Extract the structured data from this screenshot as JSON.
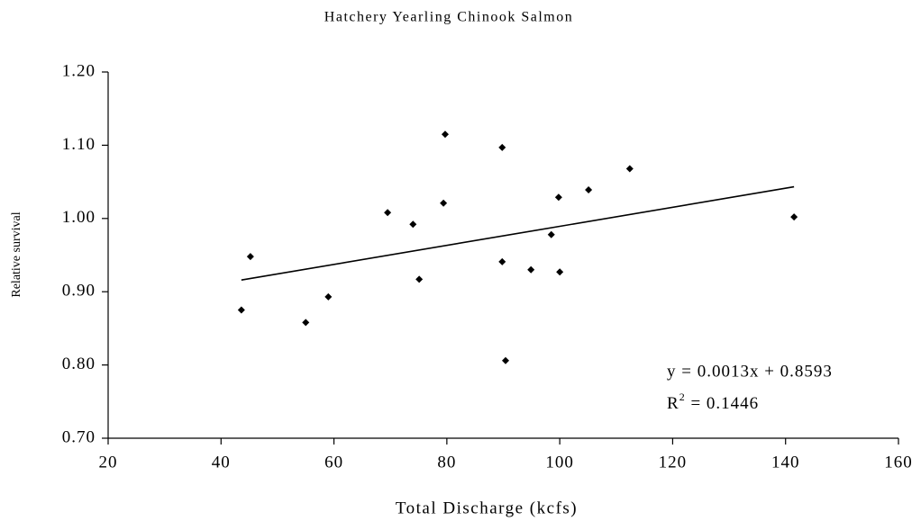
{
  "chart_data": {
    "type": "scatter",
    "title": "Hatchery Yearling Chinook Salmon",
    "x_label": "Total Discharge (kcfs)",
    "y_label": "Relative survival",
    "x": [
      43.6,
      45.2,
      55.0,
      59.0,
      69.5,
      74.0,
      75.1,
      79.4,
      79.7,
      89.8,
      89.8,
      90.4,
      94.9,
      98.5,
      99.8,
      100.0,
      105.1,
      112.4,
      141.5
    ],
    "values": [
      0.875,
      0.948,
      0.858,
      0.893,
      1.008,
      0.992,
      0.917,
      1.021,
      1.115,
      1.097,
      0.941,
      0.806,
      0.93,
      0.978,
      1.029,
      0.927,
      1.039,
      1.068,
      1.002
    ],
    "color": "#000000",
    "xlim": [
      20,
      160
    ],
    "xticks": [
      20,
      40,
      60,
      80,
      100,
      120,
      140,
      160
    ],
    "ylim": [
      0.7,
      1.2
    ],
    "yticks": [
      {
        "value": 0.7,
        "label": "0.70"
      },
      {
        "value": 0.8,
        "label": "0.80"
      },
      {
        "value": 0.9,
        "label": "0.90"
      },
      {
        "value": 1.0,
        "label": "1.00"
      },
      {
        "value": 1.1,
        "label": "1.10"
      },
      {
        "value": 1.2,
        "label": "1.20"
      }
    ],
    "grid": false,
    "trendline": {
      "slope": 0.0013,
      "intercept": 0.8593
    },
    "equation": "y = 0.0013x + 0.8593",
    "r2_label": {
      "base": "R",
      "sup": "2",
      "rest": " = 0.1446"
    }
  }
}
